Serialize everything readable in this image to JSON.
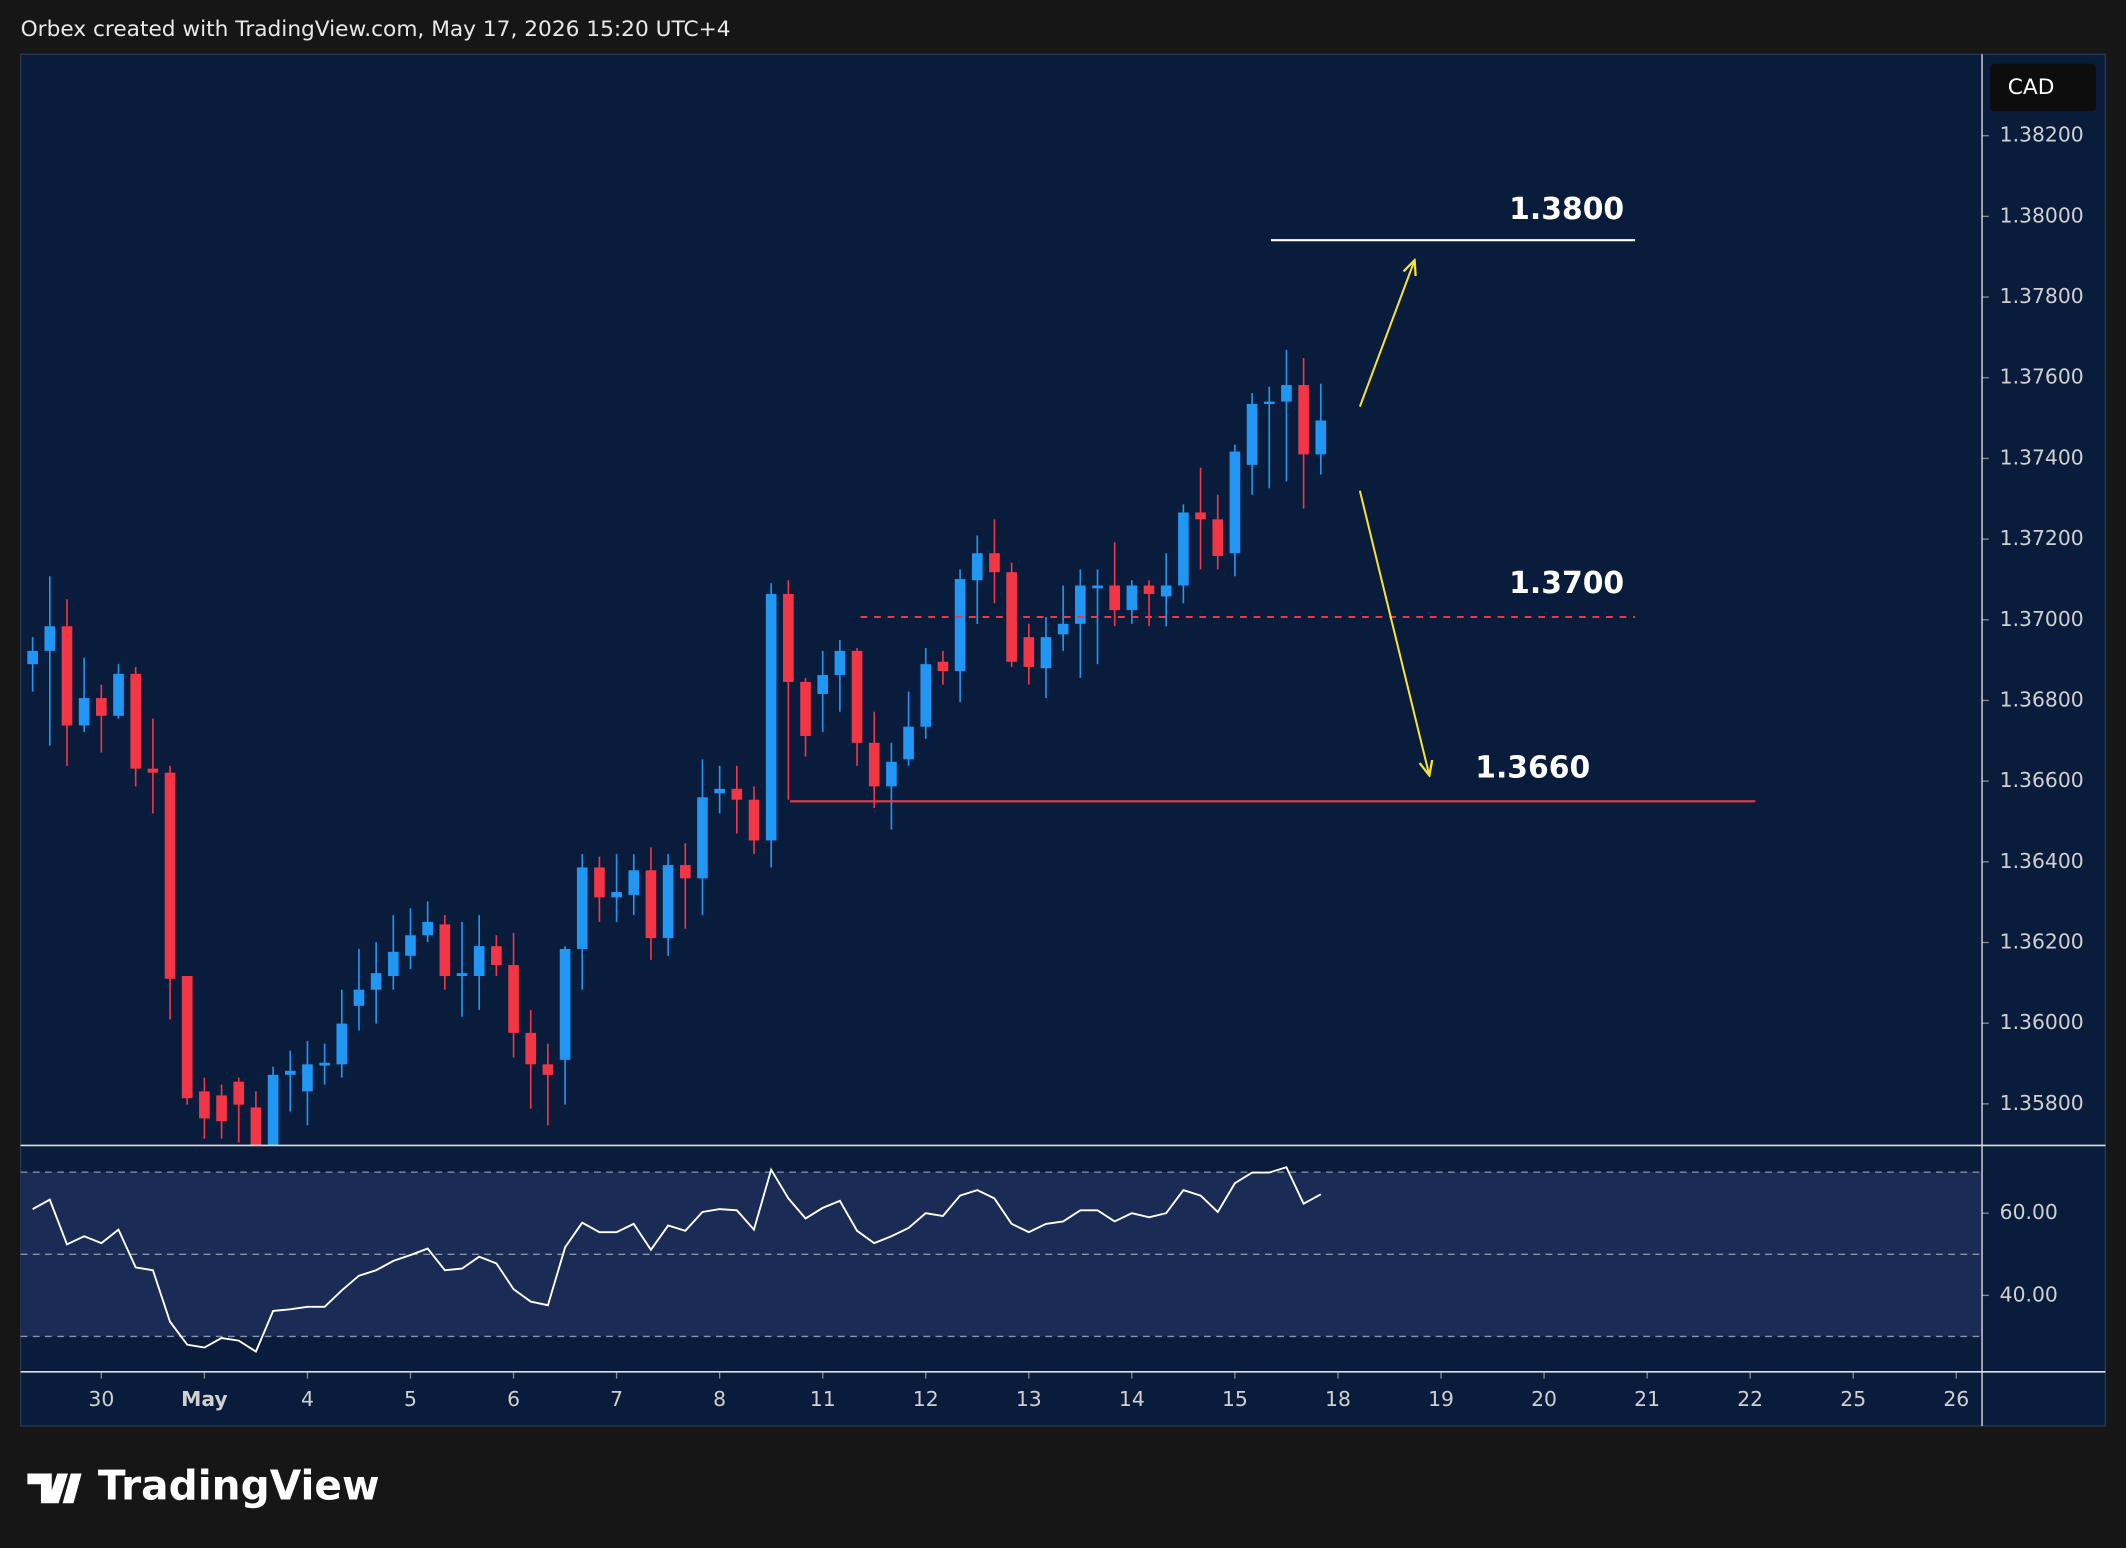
{
  "header": "Orbex created with TradingView.com, May 17, 2026 15:20 UTC+4",
  "brand": "TradingView",
  "chart_data": [
    {
      "type": "candlestick",
      "currency": "CAD",
      "xlim": [
        -0.7,
        113.5
      ],
      "xticks": [
        {
          "value": 4,
          "label": "30"
        },
        {
          "value": 10,
          "label": "May"
        },
        {
          "value": 16,
          "label": "4"
        },
        {
          "value": 22,
          "label": "5"
        },
        {
          "value": 28,
          "label": "6"
        },
        {
          "value": 34,
          "label": "7"
        },
        {
          "value": 40,
          "label": "8"
        },
        {
          "value": 46,
          "label": "11"
        },
        {
          "value": 52,
          "label": "12"
        },
        {
          "value": 58,
          "label": "13"
        },
        {
          "value": 64,
          "label": "14"
        },
        {
          "value": 70,
          "label": "15"
        },
        {
          "value": 76,
          "label": "18"
        },
        {
          "value": 82,
          "label": "19"
        },
        {
          "value": 88,
          "label": "20"
        },
        {
          "value": 94,
          "label": "21"
        },
        {
          "value": 100,
          "label": "22"
        },
        {
          "value": 106,
          "label": "25"
        },
        {
          "value": 112,
          "label": "26"
        }
      ],
      "ylim": [
        1.35697,
        1.38402
      ],
      "yticks": [
        {
          "value": 1.358,
          "label": "1.35800"
        },
        {
          "value": 1.36,
          "label": "1.36000"
        },
        {
          "value": 1.362,
          "label": "1.36200"
        },
        {
          "value": 1.364,
          "label": "1.36400"
        },
        {
          "value": 1.366,
          "label": "1.36600"
        },
        {
          "value": 1.368,
          "label": "1.36800"
        },
        {
          "value": 1.37,
          "label": "1.37000"
        },
        {
          "value": 1.372,
          "label": "1.37200"
        },
        {
          "value": 1.374,
          "label": "1.37400"
        },
        {
          "value": 1.376,
          "label": "1.37600"
        },
        {
          "value": 1.378,
          "label": "1.37800"
        },
        {
          "value": 1.38,
          "label": "1.38000"
        },
        {
          "value": 1.382,
          "label": "1.38200"
        }
      ],
      "up_color": "#2196f3",
      "down_color": "#f23645",
      "open": [
        1.3689,
        1.36923,
        1.36984,
        1.36738,
        1.36806,
        1.36762,
        1.36866,
        1.36631,
        1.36621,
        1.36117,
        1.35831,
        1.35821,
        1.35855,
        1.35791,
        1.35697,
        1.35872,
        1.35831,
        1.35895,
        1.35898,
        1.36043,
        1.36083,
        1.36117,
        1.36167,
        1.36218,
        1.36245,
        1.36117,
        1.36117,
        1.36191,
        1.36144,
        1.35976,
        1.35898,
        1.35909,
        1.36184,
        1.36386,
        1.36312,
        1.36318,
        1.36379,
        1.36211,
        1.36392,
        1.36359,
        1.3657,
        1.36581,
        1.36554,
        1.36453,
        1.37064,
        1.36846,
        1.36816,
        1.36863,
        1.36923,
        1.36695,
        1.36587,
        1.36654,
        1.36735,
        1.36896,
        1.36873,
        1.37098,
        1.37165,
        1.37118,
        1.36957,
        1.3688,
        1.36964,
        1.3699,
        1.37078,
        1.37085,
        1.37024,
        1.37085,
        1.37058,
        1.37085,
        1.37266,
        1.37249,
        1.37165,
        1.37384,
        1.37535,
        1.37541,
        1.37582,
        1.3741
      ],
      "high": [
        1.36957,
        1.37108,
        1.37051,
        1.36906,
        1.36839,
        1.3689,
        1.36883,
        1.36755,
        1.36638,
        1.36117,
        1.35865,
        1.35848,
        1.35865,
        1.35831,
        1.35892,
        1.35932,
        1.35956,
        1.35949,
        1.36083,
        1.36184,
        1.36201,
        1.36268,
        1.36285,
        1.36302,
        1.36268,
        1.36251,
        1.36268,
        1.36218,
        1.36224,
        1.36033,
        1.35949,
        1.36191,
        1.36419,
        1.36413,
        1.36419,
        1.36419,
        1.36436,
        1.36419,
        1.36446,
        1.36654,
        1.36638,
        1.36638,
        1.36587,
        1.37091,
        1.37098,
        1.36856,
        1.36923,
        1.3695,
        1.3693,
        1.36772,
        1.36695,
        1.36822,
        1.3693,
        1.36923,
        1.37125,
        1.37209,
        1.37249,
        1.37142,
        1.3699,
        1.37007,
        1.37085,
        1.37125,
        1.37125,
        1.37192,
        1.37098,
        1.37098,
        1.37165,
        1.37286,
        1.37377,
        1.3731,
        1.37434,
        1.37562,
        1.37578,
        1.37669,
        1.37649,
        1.37585
      ],
      "low": [
        1.36822,
        1.36688,
        1.36638,
        1.36722,
        1.36671,
        1.36755,
        1.36587,
        1.3652,
        1.36009,
        1.35798,
        1.35714,
        1.35714,
        1.35704,
        1.3569,
        1.3569,
        1.35781,
        1.35747,
        1.35848,
        1.35865,
        1.35982,
        1.35999,
        1.36083,
        1.36134,
        1.36201,
        1.36083,
        1.36016,
        1.36033,
        1.36117,
        1.35915,
        1.35788,
        1.35747,
        1.35798,
        1.36083,
        1.36251,
        1.36251,
        1.36268,
        1.36157,
        1.36167,
        1.36234,
        1.36268,
        1.3652,
        1.3647,
        1.36419,
        1.36386,
        1.36554,
        1.36661,
        1.36722,
        1.36772,
        1.36638,
        1.36533,
        1.3648,
        1.36638,
        1.36705,
        1.36839,
        1.36796,
        1.3699,
        1.37041,
        1.36883,
        1.36839,
        1.36806,
        1.36923,
        1.36856,
        1.3689,
        1.36984,
        1.3699,
        1.36984,
        1.36984,
        1.37041,
        1.37125,
        1.37125,
        1.37108,
        1.3731,
        1.37326,
        1.37343,
        1.37276,
        1.3736
      ],
      "close": [
        1.36923,
        1.36984,
        1.36738,
        1.36806,
        1.36762,
        1.36866,
        1.36631,
        1.36621,
        1.3611,
        1.35814,
        1.35764,
        1.35757,
        1.35798,
        1.35697,
        1.35872,
        1.35882,
        1.35898,
        1.35902,
        1.35999,
        1.36083,
        1.36124,
        1.36177,
        1.36218,
        1.36251,
        1.36117,
        1.36124,
        1.36191,
        1.36144,
        1.35976,
        1.35898,
        1.35872,
        1.36184,
        1.36386,
        1.36312,
        1.36325,
        1.36379,
        1.36211,
        1.36392,
        1.36359,
        1.3656,
        1.36581,
        1.36554,
        1.36453,
        1.37064,
        1.36846,
        1.36712,
        1.36863,
        1.36923,
        1.36695,
        1.36587,
        1.36648,
        1.36735,
        1.3689,
        1.36873,
        1.37101,
        1.37165,
        1.37118,
        1.36896,
        1.36883,
        1.36957,
        1.3699,
        1.37085,
        1.37085,
        1.37024,
        1.37085,
        1.37064,
        1.37085,
        1.37266,
        1.37249,
        1.37158,
        1.37417,
        1.37535,
        1.37541,
        1.37582,
        1.3741,
        1.37494
      ],
      "levels": [
        {
          "label": "1.3800",
          "price": 1.37941,
          "from": 72.1,
          "to": 93.3,
          "style": "solid",
          "color": "#ffffff"
        },
        {
          "label": "1.3700",
          "price": 1.37007,
          "from": 48.2,
          "to": 93.3,
          "style": "dashed",
          "color": "#f23645"
        },
        {
          "label": "1.3660",
          "price": 1.3655,
          "from": 44.1,
          "to": 100.3,
          "style": "solid",
          "color": "#f23645"
        }
      ]
    },
    {
      "type": "line",
      "color": "#ffffff",
      "ylim": [
        21.4,
        76.5
      ],
      "yticks": [
        {
          "value": 40,
          "label": "40.00"
        },
        {
          "value": 60,
          "label": "60.00"
        }
      ],
      "bands": [
        70,
        50,
        30
      ],
      "values": [
        61.0,
        63.3,
        52.4,
        54.4,
        52.7,
        56.0,
        46.8,
        46.1,
        33.6,
        28.0,
        27.3,
        29.6,
        29.0,
        26.3,
        36.2,
        36.6,
        37.2,
        37.2,
        41.2,
        44.8,
        46.1,
        48.4,
        49.8,
        51.4,
        46.1,
        46.5,
        49.4,
        47.8,
        41.5,
        38.5,
        37.6,
        51.7,
        57.7,
        55.4,
        55.4,
        57.4,
        51.1,
        57.0,
        55.7,
        60.3,
        61.0,
        60.7,
        56.0,
        70.6,
        63.6,
        58.7,
        61.3,
        63.0,
        55.7,
        52.7,
        54.4,
        56.4,
        60.0,
        59.3,
        64.3,
        65.6,
        63.6,
        57.4,
        55.4,
        57.4,
        58.0,
        60.7,
        60.7,
        58.0,
        60.0,
        59.0,
        60.0,
        65.6,
        64.3,
        60.3,
        67.3,
        69.9,
        69.9,
        71.2,
        62.3,
        64.6
      ]
    }
  ]
}
